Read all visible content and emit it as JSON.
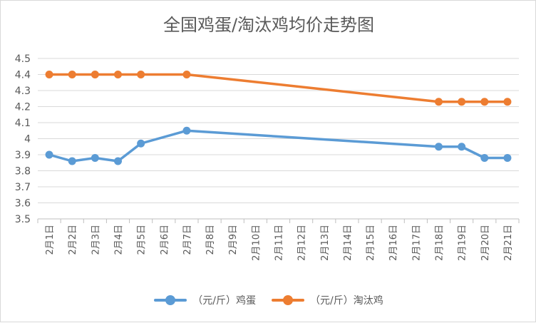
{
  "chart_data": {
    "type": "line",
    "title": "全国鸡蛋/淘汰鸡均价走势图",
    "categories": [
      "2月1日",
      "2月2日",
      "2月3日",
      "2月4日",
      "2月5日",
      "2月6日",
      "2月7日",
      "2月8日",
      "2月9日",
      "2月10日",
      "2月11日",
      "2月12日",
      "2月13日",
      "2月14日",
      "2月15日",
      "2月16日",
      "2月17日",
      "2月18日",
      "2月19日",
      "2月20日",
      "2月21日"
    ],
    "ylim": [
      3.5,
      4.5
    ],
    "yticks": [
      "3.5",
      "3.6",
      "3.7",
      "3.8",
      "3.9",
      "4",
      "4.1",
      "4.2",
      "4.3",
      "4.4",
      "4.5"
    ],
    "grid": true,
    "legend_position": "bottom",
    "series": [
      {
        "name": "（元/斤）鸡蛋",
        "color": "#5b9bd5",
        "values": [
          3.9,
          3.86,
          3.88,
          3.86,
          3.97,
          null,
          4.05,
          null,
          null,
          null,
          null,
          null,
          null,
          null,
          null,
          null,
          null,
          3.95,
          3.95,
          3.88,
          3.88
        ]
      },
      {
        "name": "（元/斤）淘汰鸡",
        "color": "#ed7d31",
        "values": [
          4.4,
          4.4,
          4.4,
          4.4,
          4.4,
          null,
          4.4,
          null,
          null,
          null,
          null,
          null,
          null,
          null,
          null,
          null,
          null,
          4.23,
          4.23,
          4.23,
          4.23
        ]
      }
    ]
  }
}
